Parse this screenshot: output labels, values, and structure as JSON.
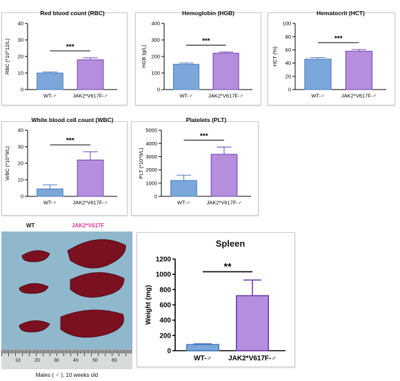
{
  "colors": {
    "wt": "#7ba7db",
    "wt_edge": "#4a7cbf",
    "jak": "#b58fdd",
    "jak_edge": "#6f3fae",
    "sig": "#000000",
    "photo_bg": "#8fb8cc",
    "spleen": "#7a1020"
  },
  "charts": [
    {
      "title": "Red blood count (RBC)",
      "ylabel": "RBC (*10^12/L)",
      "categories": [
        "WT-♂",
        "JAK2*V617F-♂"
      ],
      "values": [
        10,
        18
      ],
      "errors": [
        0.6,
        1.2
      ],
      "ylim": [
        0,
        40
      ],
      "ticks": [
        "0",
        "10",
        "20",
        "30",
        "40"
      ],
      "significance": "***"
    },
    {
      "title": "Hemoglobin (HGB)",
      "ylabel": "HGB (g/L)",
      "categories": [
        "WT-♂",
        "JAK2*V617F-♂"
      ],
      "values": [
        153,
        220
      ],
      "errors": [
        8,
        7
      ],
      "ylim": [
        0,
        400
      ],
      "ticks": [
        "0",
        "100",
        "200",
        "300",
        "400"
      ],
      "significance": "***"
    },
    {
      "title": "Hematocrit (HCT)",
      "ylabel": "HCT (%)",
      "categories": [
        "WT-♂",
        "JAK2*V617F-♂"
      ],
      "values": [
        46,
        58
      ],
      "errors": [
        2.5,
        2.5
      ],
      "ylim": [
        0,
        100
      ],
      "ticks": [
        "0",
        "20",
        "40",
        "60",
        "80",
        "100"
      ],
      "significance": "***"
    },
    {
      "title": "White blood cell count (WBC)",
      "ylabel": "WBC (*10^9/L)",
      "categories": [
        "WT-♂",
        "JAK2*V617F-♂"
      ],
      "values": [
        4.5,
        22
      ],
      "errors": [
        2.5,
        5
      ],
      "ylim": [
        0,
        40
      ],
      "ticks": [
        "0",
        "10",
        "20",
        "30",
        "40"
      ],
      "significance": "***"
    },
    {
      "title": "Platelets (PLT)",
      "ylabel": "PLT (*10^9/L)",
      "categories": [
        "WT-♂",
        "JAK2*V617F-♂"
      ],
      "values": [
        1200,
        3180
      ],
      "errors": [
        400,
        550
      ],
      "ylim": [
        0,
        5000
      ],
      "ticks": [
        "0",
        "1000",
        "2000",
        "3000",
        "4000",
        "5000"
      ],
      "significance": "***"
    },
    {
      "title": "Spleen",
      "ylabel": "Weight (mg)",
      "categories": [
        "WT-♂",
        "JAK2*V617F-♂"
      ],
      "values": [
        80,
        720
      ],
      "errors": [
        10,
        205
      ],
      "ylim": [
        0,
        1200
      ],
      "ticks": [
        "0",
        "200",
        "400",
        "600",
        "800",
        "1000",
        "1200"
      ],
      "significance": "**"
    }
  ],
  "chart_data": [
    {
      "type": "bar",
      "title": "Red blood count (RBC)",
      "ylabel": "RBC (*10^12/L)",
      "categories": [
        "WT-♂",
        "JAK2*V617F-♂"
      ],
      "values": [
        10,
        18
      ],
      "errors": [
        0.6,
        1.2
      ],
      "ylim": [
        0,
        40
      ]
    },
    {
      "type": "bar",
      "title": "Hemoglobin (HGB)",
      "ylabel": "HGB (g/L)",
      "categories": [
        "WT-♂",
        "JAK2*V617F-♂"
      ],
      "values": [
        153,
        220
      ],
      "errors": [
        8,
        7
      ],
      "ylim": [
        0,
        400
      ]
    },
    {
      "type": "bar",
      "title": "Hematocrit (HCT)",
      "ylabel": "HCT (%)",
      "categories": [
        "WT-♂",
        "JAK2*V617F-♂"
      ],
      "values": [
        46,
        58
      ],
      "errors": [
        2.5,
        2.5
      ],
      "ylim": [
        0,
        100
      ]
    },
    {
      "type": "bar",
      "title": "White blood cell count (WBC)",
      "ylabel": "WBC (*10^9/L)",
      "categories": [
        "WT-♂",
        "JAK2*V617F-♂"
      ],
      "values": [
        4.5,
        22
      ],
      "errors": [
        2.5,
        5
      ],
      "ylim": [
        0,
        40
      ]
    },
    {
      "type": "bar",
      "title": "Platelets (PLT)",
      "ylabel": "PLT (*10^9/L)",
      "categories": [
        "WT-♂",
        "JAK2*V617F-♂"
      ],
      "values": [
        1200,
        3180
      ],
      "errors": [
        400,
        550
      ],
      "ylim": [
        0,
        5000
      ]
    },
    {
      "type": "bar",
      "title": "Spleen",
      "ylabel": "Weight (mg)",
      "categories": [
        "WT-♂",
        "JAK2*V617F-♂"
      ],
      "values": [
        80,
        720
      ],
      "errors": [
        10,
        205
      ],
      "ylim": [
        0,
        1200
      ]
    }
  ],
  "photo": {
    "label_wt": "WT",
    "label_jak": "JAK2*V617F",
    "caption": "Males ( ♂ ), 10 weeks old",
    "ruler_numbers": [
      "10",
      "20",
      "30",
      "40",
      "50",
      "60"
    ]
  }
}
